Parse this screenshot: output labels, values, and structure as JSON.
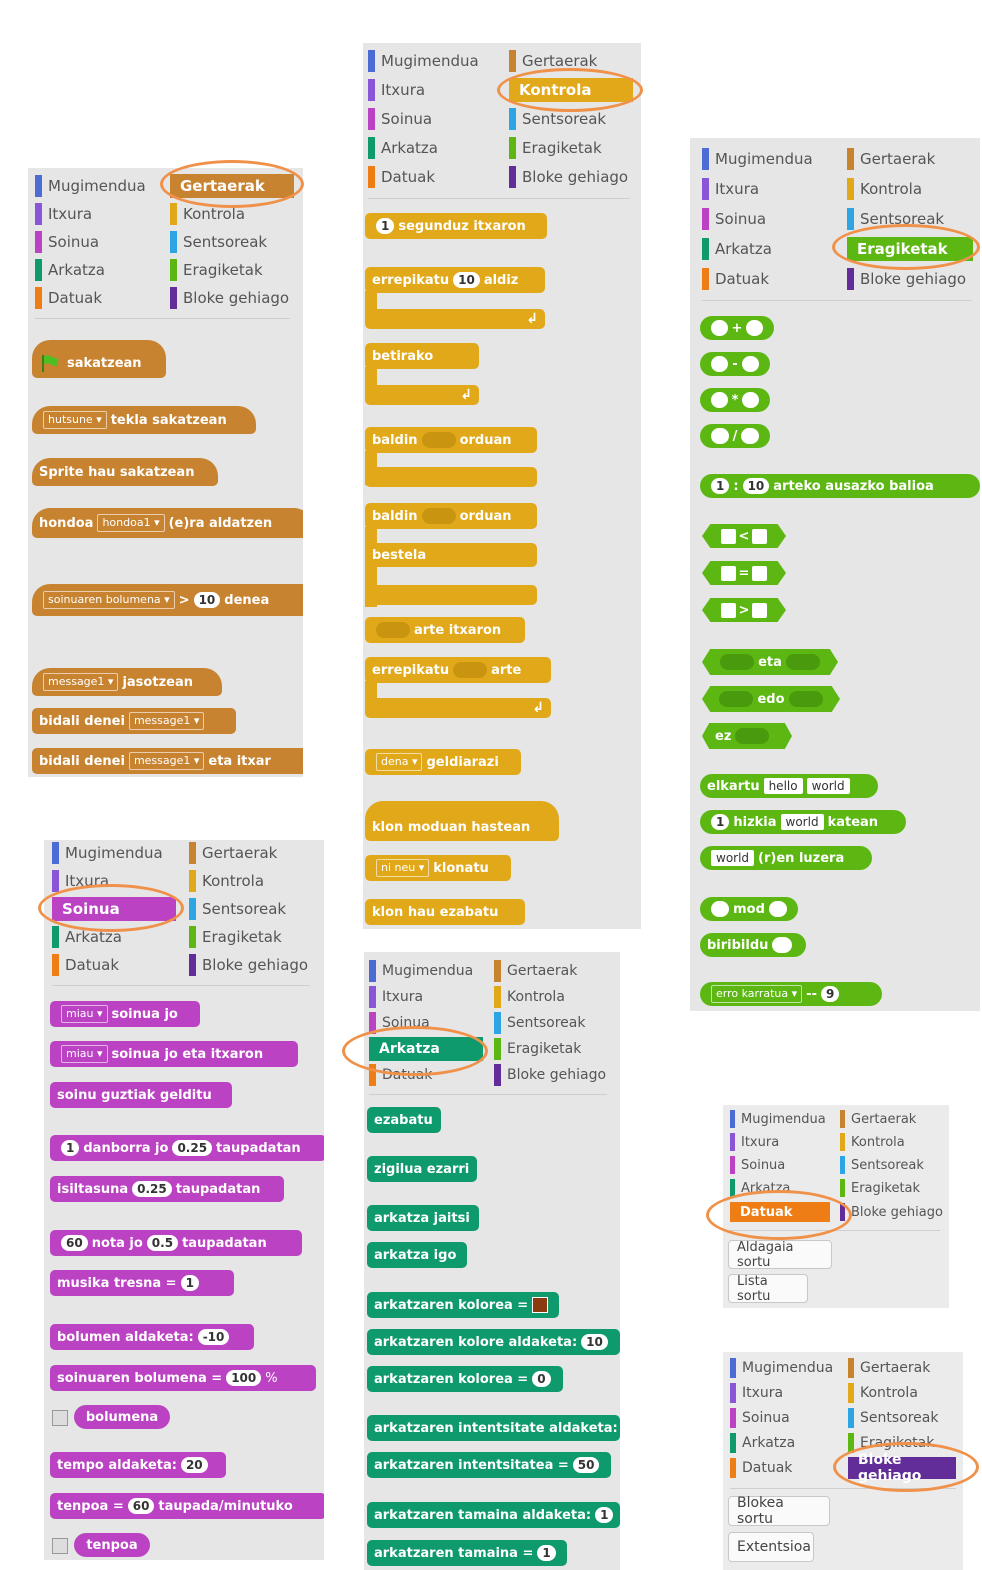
{
  "categories": {
    "motion": "Mugimendua",
    "looks": "Itxura",
    "sound": "Soinua",
    "pen": "Arkatza",
    "data": "Datuak",
    "events": "Gertaerak",
    "control": "Kontrola",
    "sensing": "Sentsoreak",
    "operators": "Eragiketak",
    "more": "Bloke gehiago"
  },
  "colors": {
    "motion": "#4a6cd4",
    "looks": "#8a55d7",
    "sound": "#bb42c3",
    "pen": "#0e9a6c",
    "data": "#ee7d16",
    "events": "#c88330",
    "control": "#e1a91a",
    "sensing": "#2ca5e2",
    "operators": "#5cb712",
    "more": "#632d99",
    "highlight": "#f0914a"
  },
  "events_blocks": {
    "flag_clicked": "sakatzean",
    "key_option": "hutsune",
    "key_pressed": "tekla sakatzean",
    "sprite_clicked": "Sprite hau sakatzean",
    "backdrop_label": "hondoa",
    "backdrop_option": "hondoa1",
    "backdrop_suffix": "(e)ra aldatzen",
    "volume_option": "soinuaren bolumena",
    "gt": ">",
    "volume_value": "10",
    "volume_suffix": "denea",
    "message_option": "message1",
    "receive_suffix": "jasotzean",
    "broadcast": "bidali denei",
    "broadcast_option": "message1",
    "broadcast_wait": "bidali denei",
    "broadcast_wait_option": "message1",
    "broadcast_wait_suffix": "eta itxar"
  },
  "control_blocks": {
    "wait_value": "1",
    "wait_suffix": "segunduz itxaron",
    "repeat_prefix": "errepikatu",
    "repeat_value": "10",
    "repeat_suffix": "aldiz",
    "forever": "betirako",
    "if_prefix": "baldin",
    "if_suffix": "orduan",
    "ifelse_prefix": "baldin",
    "ifelse_suffix": "orduan",
    "else": "bestela",
    "wait_until": "arte itxaron",
    "repeat_until_prefix": "errepikatu",
    "repeat_until_suffix": "arte",
    "stop_option": "dena",
    "stop_suffix": "geldiarazi",
    "clone_start": "klon moduan hastean",
    "clone_option": "ni neu",
    "clone_suffix": "klonatu",
    "delete_clone": "klon hau ezabatu"
  },
  "operator_blocks": {
    "plus": "+",
    "minus": "-",
    "times": "*",
    "divide": "/",
    "random_from": "1",
    "random_sep": ":",
    "random_to": "10",
    "random_suffix": "arteko ausazko balioa",
    "lt": "<",
    "eq": "=",
    "gt": ">",
    "and": "eta",
    "or": "edo",
    "not": "ez",
    "join_prefix": "elkartu",
    "join_a": "hello",
    "join_b": "world",
    "letter_value": "1",
    "letter_mid": "hizkia",
    "letter_word": "world",
    "letter_suffix": "katean",
    "length_word": "world",
    "length_suffix": "(r)en luzera",
    "mod": "mod",
    "round": "biribildu",
    "math_option": "erro karratua",
    "math_mid": "--",
    "math_value": "9"
  },
  "sound_blocks": {
    "play_option": "miau",
    "play_suffix": "soinua jo",
    "play_wait_option": "miau",
    "play_wait_suffix": "soinua jo eta itxaron",
    "stop_all": "soinu guztiak gelditu",
    "drum_value": "1",
    "drum_mid": "danborra jo",
    "drum_beats": "0.25",
    "drum_suffix": "taupadatan",
    "rest_prefix": "isiltasuna",
    "rest_value": "0.25",
    "rest_suffix": "taupadatan",
    "note_value": "60",
    "note_mid": "nota jo",
    "note_beats": "0.5",
    "note_suffix": "taupadatan",
    "instrument_prefix": "musika tresna =",
    "instrument_value": "1",
    "change_volume_prefix": "bolumen aldaketa:",
    "change_volume_value": "-10",
    "set_volume_prefix": "soinuaren bolumena =",
    "set_volume_value": "100",
    "set_volume_suffix": "%",
    "volume": "bolumena",
    "change_tempo_prefix": "tempo aldaketa:",
    "change_tempo_value": "20",
    "set_tempo_prefix": "tenpoa =",
    "set_tempo_value": "60",
    "set_tempo_suffix": "taupada/minutuko",
    "tempo": "tenpoa"
  },
  "pen_blocks": {
    "clear": "ezabatu",
    "stamp": "zigilua ezarri",
    "pen_down": "arkatza jaitsi",
    "pen_up": "arkatza igo",
    "set_color": "arkatzaren kolorea =",
    "change_color": "arkatzaren kolore aldaketa:",
    "change_color_value": "10",
    "set_color_num": "arkatzaren kolorea =",
    "set_color_num_value": "0",
    "change_shade": "arkatzaren intentsitate aldaketa:",
    "set_shade": "arkatzaren intentsitatea =",
    "set_shade_value": "50",
    "change_size": "arkatzaren tamaina aldaketa:",
    "change_size_value": "1",
    "set_size": "arkatzaren tamaina =",
    "set_size_value": "1"
  },
  "data_panel": {
    "make_variable": "Aldagaia sortu",
    "make_list": "Lista sortu"
  },
  "more_panel": {
    "make_block": "Blokea sortu",
    "extension": "Extentsioa"
  }
}
